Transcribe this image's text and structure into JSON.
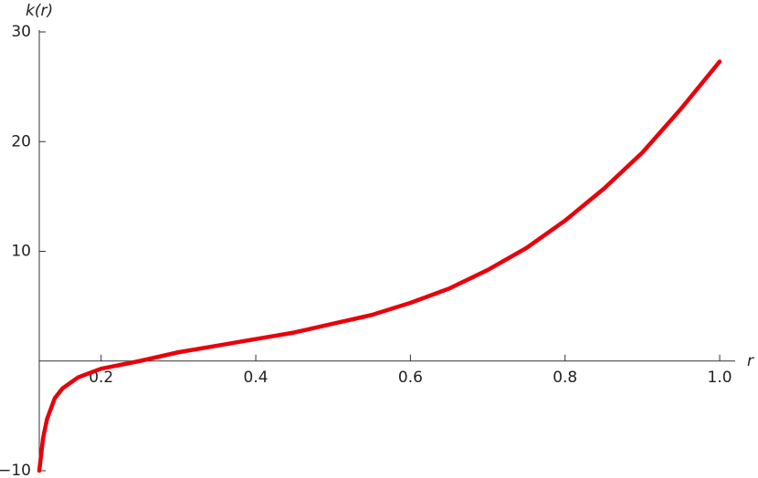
{
  "chart_data": {
    "type": "line",
    "x_label": "r",
    "y_label": "k(r)",
    "x": [
      0.12,
      0.125,
      0.13,
      0.14,
      0.15,
      0.17,
      0.2,
      0.25,
      0.3,
      0.35,
      0.4,
      0.45,
      0.5,
      0.55,
      0.6,
      0.65,
      0.7,
      0.75,
      0.8,
      0.85,
      0.9,
      0.95,
      1.0
    ],
    "series": [
      {
        "name": "k(r)",
        "color": "#e8000b",
        "values": [
          -10,
          -7,
          -5.3,
          -3.4,
          -2.5,
          -1.5,
          -0.7,
          0,
          0.8,
          1.4,
          2.0,
          2.6,
          3.4,
          4.2,
          5.3,
          6.6,
          8.3,
          10.3,
          12.8,
          15.7,
          19.0,
          23.0,
          27.3
        ]
      }
    ],
    "xlim": [
      0.12,
      1.02
    ],
    "ylim": [
      -10,
      30
    ],
    "xticks": [
      0.2,
      0.4,
      0.6,
      0.8,
      {
        "value": 1.0,
        "label": "1.0"
      }
    ],
    "yticks": [
      {
        "value": -10,
        "label": "−10"
      },
      10,
      20,
      30
    ]
  }
}
